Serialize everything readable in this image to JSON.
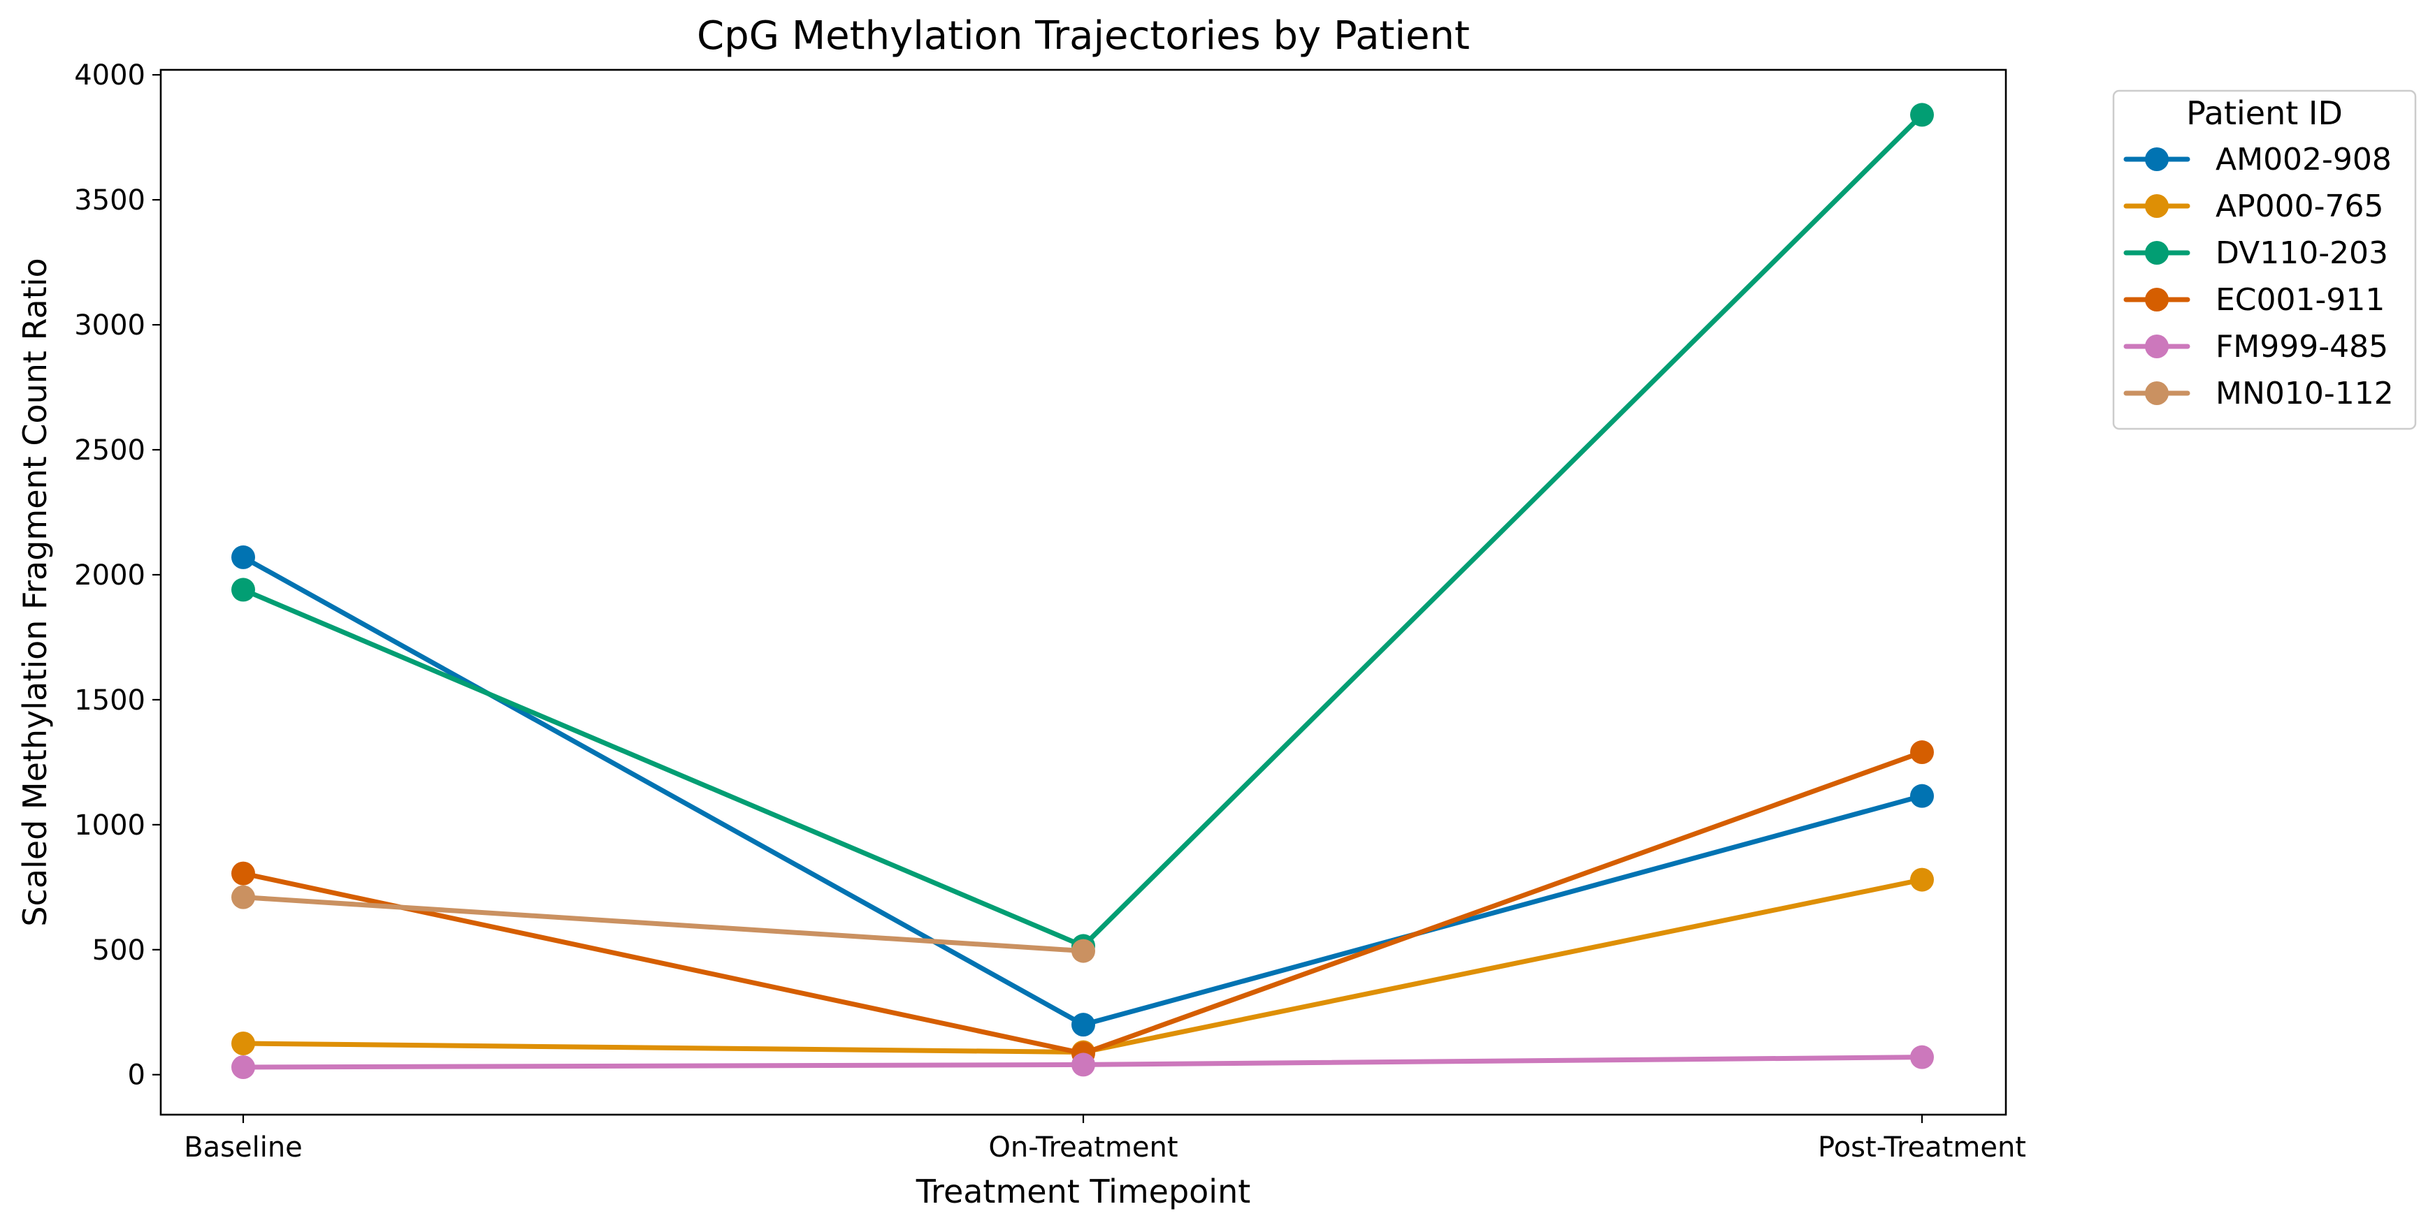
{
  "chart_data": {
    "type": "line",
    "title": "CpG Methylation Trajectories by Patient",
    "xlabel": "Treatment Timepoint",
    "ylabel": "Scaled Methylation Fragment Count Ratio",
    "categories": [
      "Baseline",
      "On-Treatment",
      "Post-Treatment"
    ],
    "ylim": [
      -160,
      4020
    ],
    "yticks": [
      0,
      500,
      1000,
      1500,
      2000,
      2500,
      3000,
      3500,
      4000
    ],
    "grid": false,
    "legend": {
      "title": "Patient ID",
      "placement": "outside-top-right"
    },
    "series": [
      {
        "name": "AM002-908",
        "color": "#0173b2",
        "values": [
          2070,
          200,
          1115
        ]
      },
      {
        "name": "AP000-765",
        "color": "#de8f05",
        "values": [
          125,
          90,
          780
        ]
      },
      {
        "name": "DV110-203",
        "color": "#029e73",
        "values": [
          1940,
          515,
          3840
        ]
      },
      {
        "name": "EC001-911",
        "color": "#d55e00",
        "values": [
          805,
          85,
          1290
        ]
      },
      {
        "name": "FM999-485",
        "color": "#cc78bc",
        "values": [
          30,
          40,
          70
        ]
      },
      {
        "name": "MN010-112",
        "color": "#ca9161",
        "values": [
          710,
          495,
          null
        ]
      }
    ]
  }
}
